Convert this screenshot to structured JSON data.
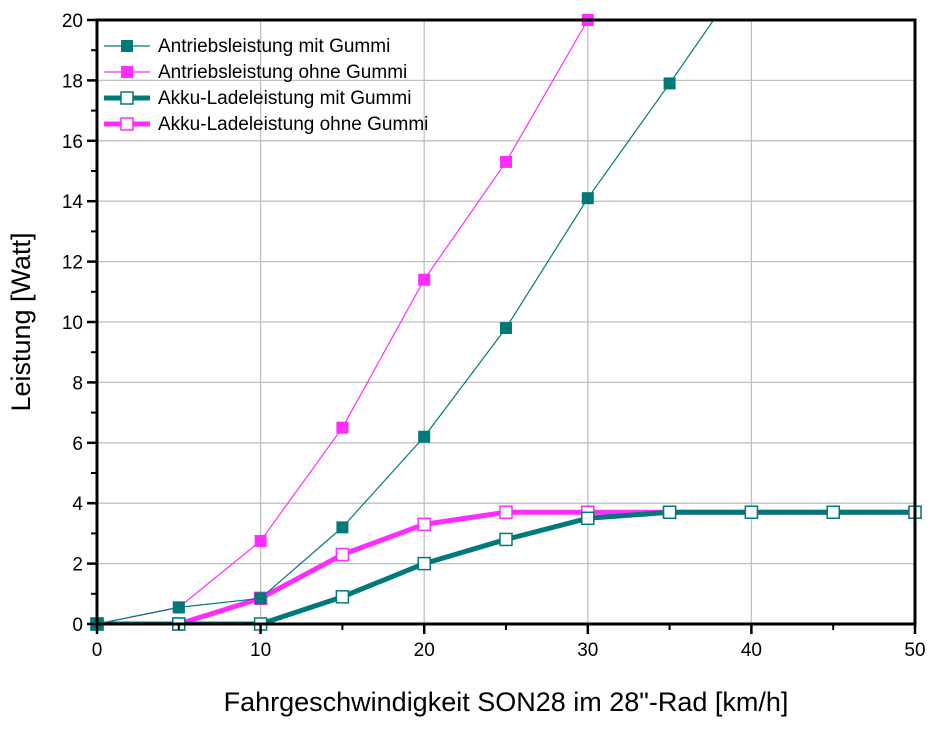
{
  "chart_data": {
    "type": "line",
    "title": "",
    "xlabel": "Fahrgeschwindigkeit SON28 im 28\"-Rad [km/h]",
    "ylabel": "Leistung [Watt]",
    "xlim": [
      0,
      50
    ],
    "ylim": [
      0,
      20
    ],
    "xticks": [
      0,
      10,
      20,
      30,
      40,
      50
    ],
    "yticks": [
      0,
      2,
      4,
      6,
      8,
      10,
      12,
      14,
      16,
      18,
      20
    ],
    "grid": true,
    "legend_position": "top-left",
    "series": [
      {
        "name": "Antriebsleistung mit Gummi",
        "color": "#007a78",
        "marker": "filled-square",
        "line": "thin",
        "x": [
          0,
          5,
          10,
          15,
          20,
          25,
          30,
          35,
          40
        ],
        "y": [
          0,
          0.55,
          0.85,
          3.2,
          6.2,
          9.8,
          14.1,
          17.9,
          21.8
        ]
      },
      {
        "name": "Antriebsleistung ohne Gummi",
        "color": "#ff2cff",
        "marker": "filled-square",
        "line": "thin",
        "x": [
          0,
          5,
          10,
          15,
          20,
          25,
          30
        ],
        "y": [
          0,
          0.55,
          2.75,
          6.5,
          11.4,
          15.3,
          20.0
        ]
      },
      {
        "name": "Akku-Ladeleistung mit Gummi",
        "color": "#007a78",
        "marker": "open-square",
        "line": "thick",
        "x": [
          0,
          5,
          10,
          15,
          20,
          25,
          30,
          35,
          40,
          45,
          50
        ],
        "y": [
          0,
          0,
          0,
          0.9,
          2.0,
          2.8,
          3.5,
          3.7,
          3.7,
          3.7,
          3.7
        ]
      },
      {
        "name": "Akku-Ladeleistung ohne Gummi",
        "color": "#ff2cff",
        "marker": "open-square",
        "line": "thick",
        "x": [
          0,
          5,
          10,
          15,
          20,
          25,
          30,
          35,
          40,
          45,
          50
        ],
        "y": [
          0,
          0,
          0.85,
          2.3,
          3.3,
          3.7,
          3.7,
          3.7,
          3.7,
          3.7,
          3.7
        ]
      }
    ]
  }
}
